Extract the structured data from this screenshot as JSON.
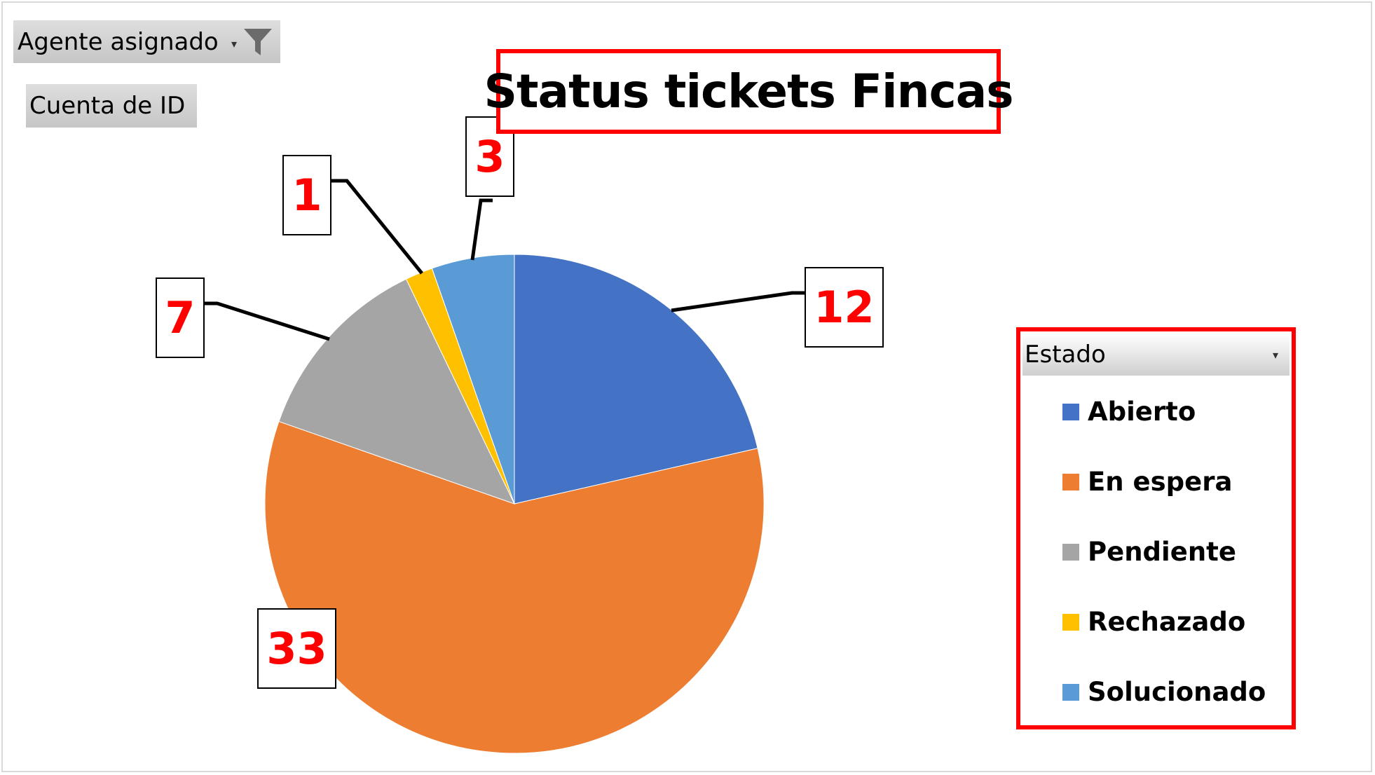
{
  "filter_field": {
    "label": "Agente asignado",
    "icon": "funnel-icon"
  },
  "value_field": {
    "label": "Cuenta de ID"
  },
  "legend_header": {
    "label": "Estado"
  },
  "chart_data": {
    "type": "pie",
    "title": "Status tickets Fincas",
    "legend_position": "right",
    "categories": [
      "Abierto",
      "En espera",
      "Pendiente",
      "Rechazado",
      "Solucionado"
    ],
    "values": [
      12,
      33,
      7,
      1,
      3
    ],
    "colors": [
      "#4472c4",
      "#ed7d31",
      "#a5a5a5",
      "#ffc000",
      "#5b9bd5"
    ],
    "data_labels": [
      "12",
      "33",
      "7",
      "1",
      "3"
    ],
    "label_color": "#ff0000",
    "highlight_border_color": "#ff0000"
  }
}
